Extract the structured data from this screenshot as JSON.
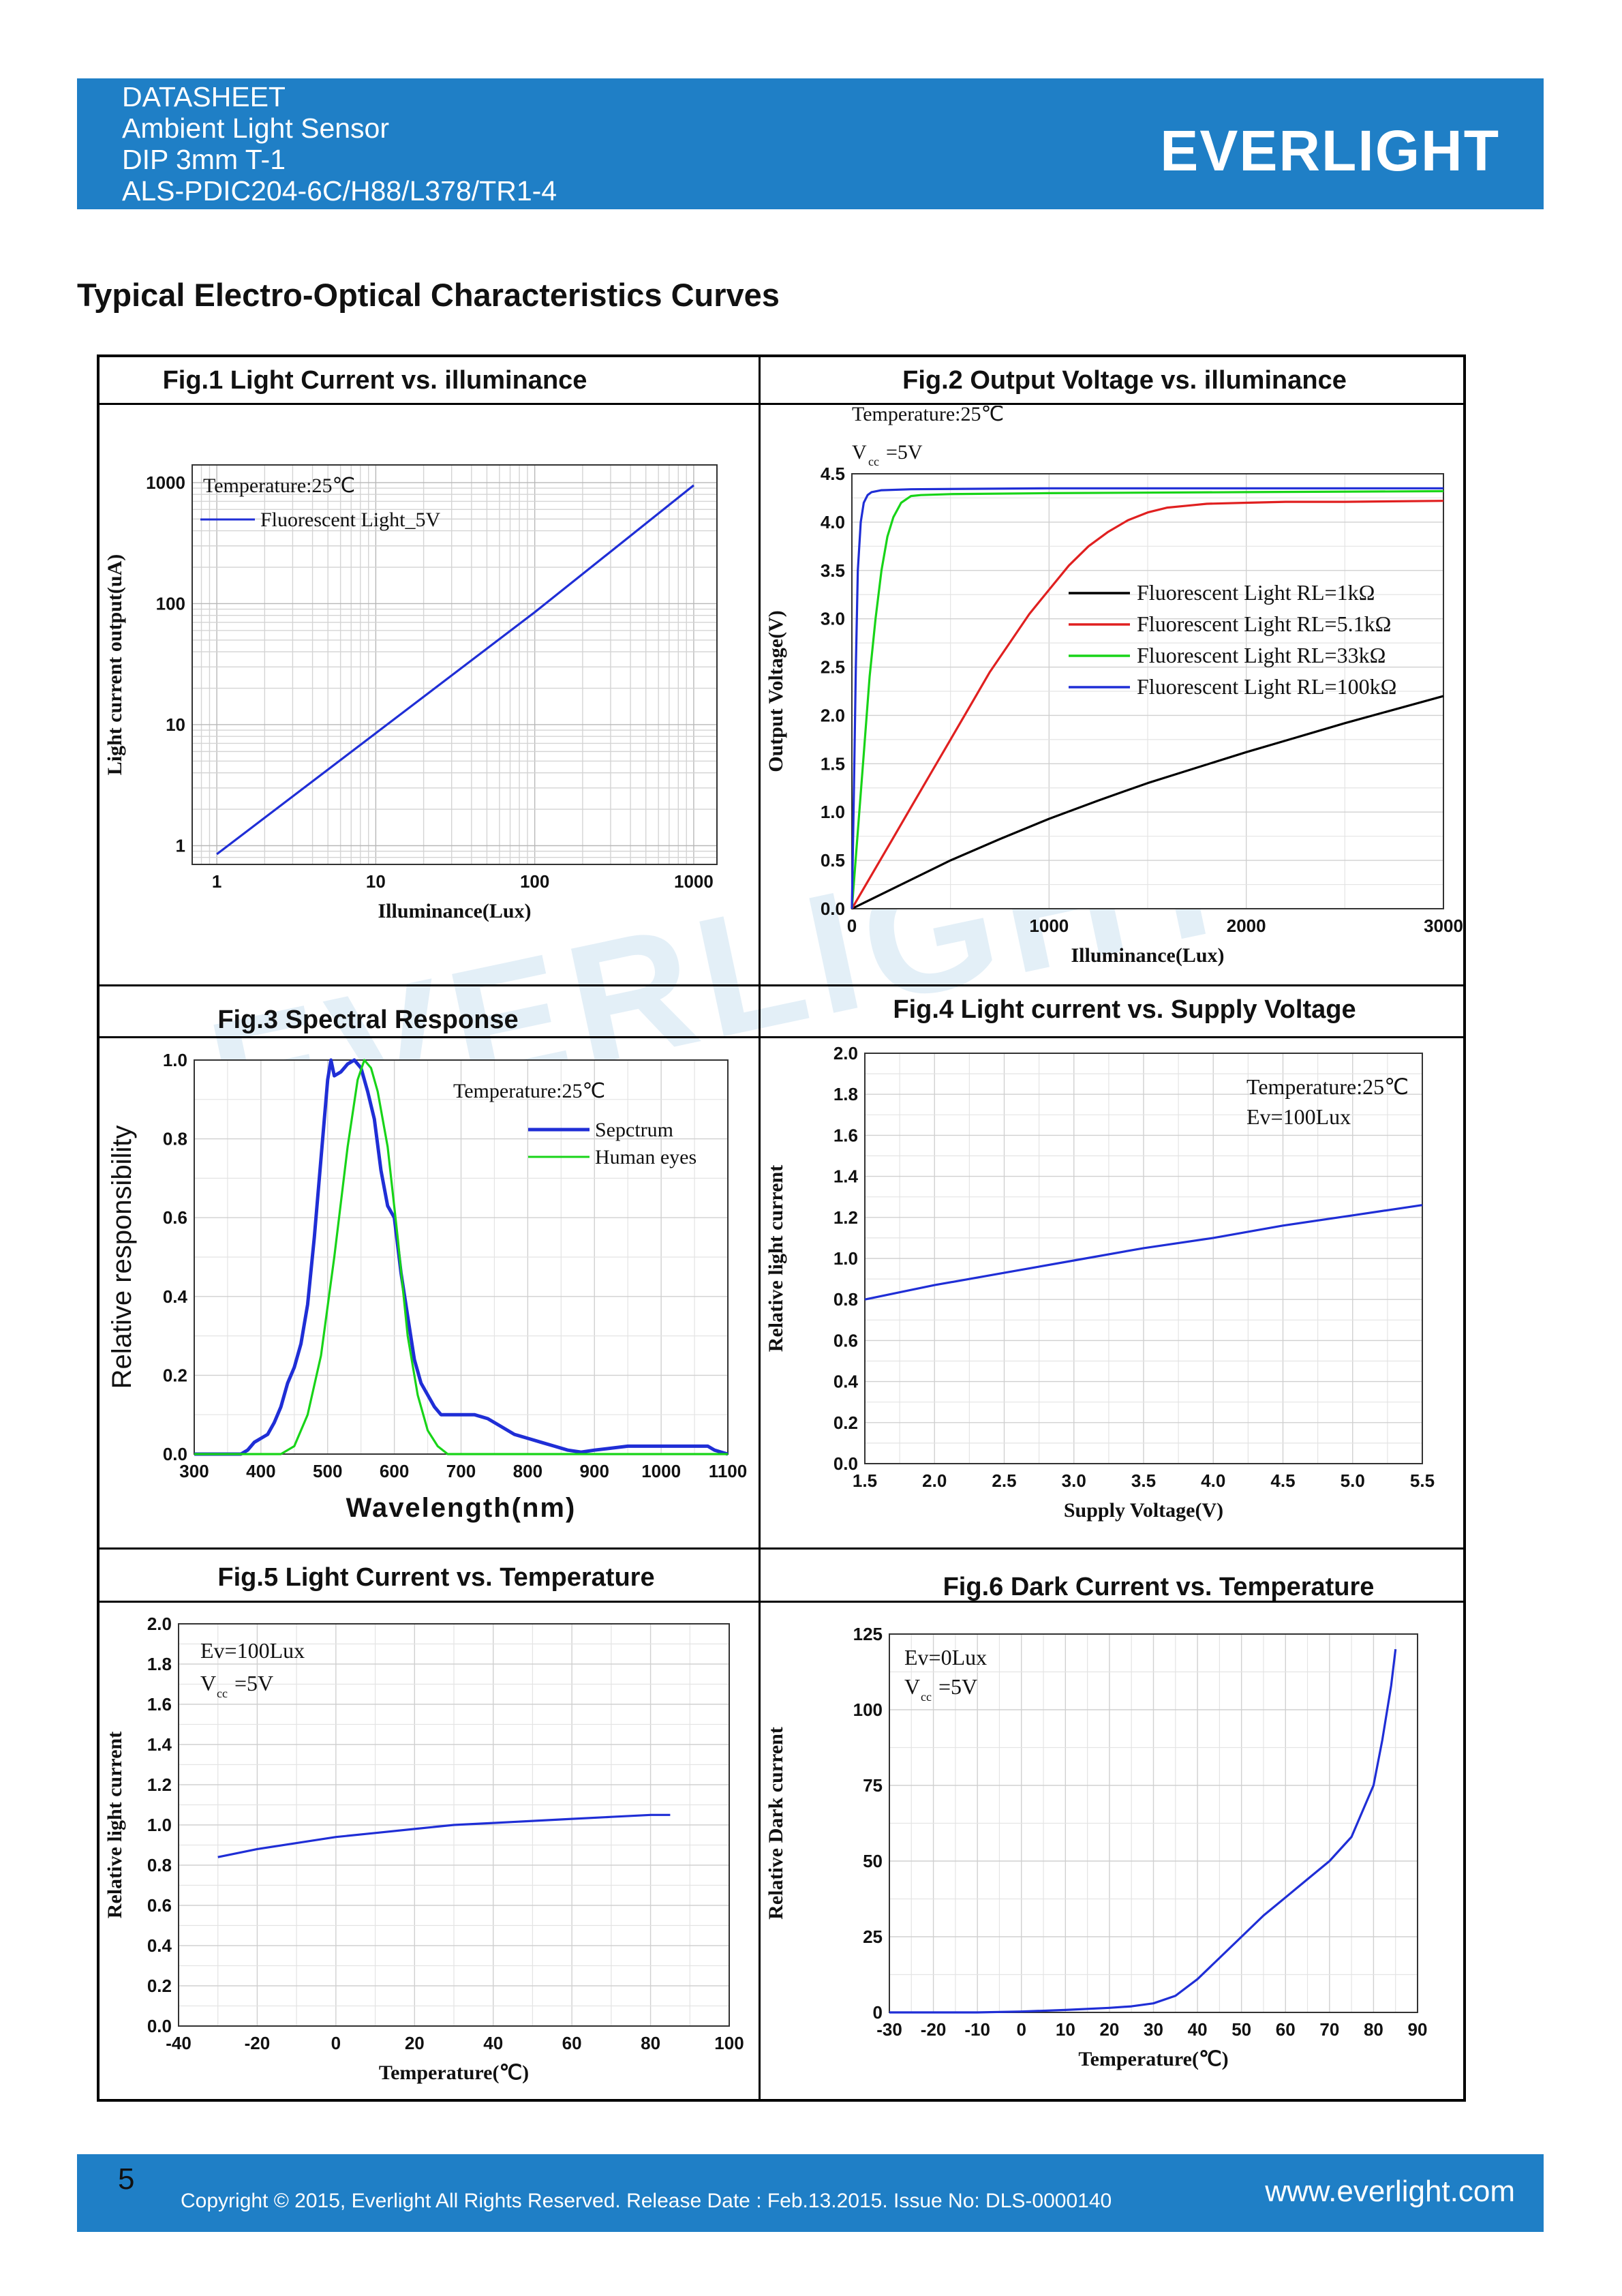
{
  "header": {
    "lines": [
      "DATASHEET",
      "Ambient Light Sensor",
      "DIP 3mm T-1",
      "ALS-PDIC204-6C/H88/L378/TR1-4"
    ],
    "brand": "EVERLIGHT"
  },
  "section_title": "Typical Electro-Optical Characteristics Curves",
  "watermark": "EVERLIGHT",
  "figures": [
    {
      "title": "Fig.1    Light Current vs. illuminance"
    },
    {
      "title": "Fig.2    Output Voltage vs. illuminance"
    },
    {
      "title": "Fig.3    Spectral Response"
    },
    {
      "title": "Fig.4 Light current vs. Supply Voltage"
    },
    {
      "title": "Fig.5    Light Current vs. Temperature"
    },
    {
      "title": "Fig.6    Dark Current vs. Temperature"
    }
  ],
  "chart_data": [
    {
      "type": "line",
      "title": "Fig.1 Light Current vs. illuminance",
      "xlabel": "Illuminance(Lux)",
      "ylabel": "Light current output(uA)",
      "xscale": "log",
      "yscale": "log",
      "xlim": [
        0.7,
        1400
      ],
      "ylim": [
        0.7,
        1400
      ],
      "xticks": [
        "1",
        "10",
        "100",
        "1000"
      ],
      "yticks": [
        "1",
        "10",
        "100",
        "1000"
      ],
      "annotations": [
        "Temperature:25℃"
      ],
      "grid": true,
      "colors": {
        "series": "#1f2ed6"
      },
      "series": [
        {
          "name": "Fluorescent Light_5V",
          "x": [
            1,
            10,
            100,
            1000
          ],
          "y": [
            0.85,
            8.5,
            85,
            950
          ]
        }
      ]
    },
    {
      "type": "line",
      "title": "Fig.2 Output Voltage vs. illuminance",
      "xlabel": "Illuminance(Lux)",
      "ylabel": "Output Voltage(V)",
      "xlim": [
        0,
        3000
      ],
      "ylim": [
        0,
        4.5
      ],
      "xticks": [
        "0",
        "1000",
        "2000",
        "3000"
      ],
      "yticks": [
        "0.0",
        "0.5",
        "1.0",
        "1.5",
        "2.0",
        "2.5",
        "3.0",
        "3.5",
        "4.0",
        "4.5"
      ],
      "annotations": [
        "Temperature:25℃",
        "V",
        "cc",
        "=5V"
      ],
      "legend": "right",
      "series": [
        {
          "name": "Fluorescent Light RL=1kΩ",
          "color": "#000000",
          "x": [
            0,
            250,
            500,
            750,
            1000,
            1250,
            1500,
            1750,
            2000,
            2250,
            2500,
            2750,
            3000
          ],
          "y": [
            0,
            0.25,
            0.5,
            0.72,
            0.93,
            1.12,
            1.3,
            1.46,
            1.62,
            1.77,
            1.92,
            2.06,
            2.2
          ]
        },
        {
          "name": "Fluorescent Light RL=5.1kΩ",
          "color": "#e02020",
          "x": [
            0,
            100,
            200,
            300,
            400,
            500,
            600,
            700,
            800,
            900,
            1000,
            1100,
            1200,
            1300,
            1400,
            1500,
            1600,
            1700,
            1800,
            2000,
            2200,
            2500,
            3000
          ],
          "y": [
            0,
            0.35,
            0.7,
            1.05,
            1.4,
            1.75,
            2.1,
            2.45,
            2.75,
            3.05,
            3.3,
            3.55,
            3.75,
            3.9,
            4.02,
            4.1,
            4.15,
            4.17,
            4.19,
            4.2,
            4.21,
            4.21,
            4.22
          ]
        },
        {
          "name": "Fluorescent Light RL=33kΩ",
          "color": "#18d418",
          "x": [
            0,
            30,
            60,
            90,
            120,
            150,
            180,
            210,
            250,
            300,
            350,
            500,
            1000,
            2000,
            3000
          ],
          "y": [
            0,
            0.8,
            1.6,
            2.4,
            3.0,
            3.5,
            3.85,
            4.05,
            4.2,
            4.27,
            4.28,
            4.29,
            4.3,
            4.31,
            4.32
          ]
        },
        {
          "name": "Fluorescent Light RL=100kΩ",
          "color": "#1f2ed6",
          "x": [
            0,
            10,
            20,
            30,
            45,
            60,
            80,
            100,
            150,
            300,
            1000,
            2000,
            3000
          ],
          "y": [
            0,
            1.2,
            2.5,
            3.5,
            4.0,
            4.2,
            4.28,
            4.31,
            4.33,
            4.34,
            4.35,
            4.35,
            4.35
          ]
        }
      ]
    },
    {
      "type": "line",
      "title": "Fig.3 Spectral Response",
      "xlabel": "Wavelength(nm)",
      "ylabel": "Relative responsibility",
      "xlim": [
        300,
        1100
      ],
      "ylim": [
        0,
        1.0
      ],
      "xticks": [
        "300",
        "400",
        "500",
        "600",
        "700",
        "800",
        "900",
        "1000",
        "1100"
      ],
      "yticks": [
        "0.0",
        "0.2",
        "0.4",
        "0.6",
        "0.8",
        "1.0"
      ],
      "annotations": [
        "Temperature:25℃"
      ],
      "legend": "top-right",
      "series": [
        {
          "name": "Sepctrum",
          "color": "#1f2ed6",
          "x": [
            300,
            370,
            380,
            390,
            400,
            410,
            420,
            430,
            440,
            450,
            460,
            470,
            480,
            490,
            500,
            505,
            510,
            520,
            530,
            540,
            550,
            560,
            570,
            580,
            590,
            600,
            610,
            620,
            630,
            640,
            650,
            660,
            670,
            680,
            700,
            720,
            740,
            760,
            780,
            800,
            820,
            840,
            860,
            880,
            900,
            950,
            1000,
            1050,
            1070,
            1080,
            1090,
            1100
          ],
          "y": [
            0,
            0,
            0.01,
            0.03,
            0.04,
            0.05,
            0.08,
            0.12,
            0.18,
            0.22,
            0.28,
            0.38,
            0.55,
            0.75,
            0.95,
            1.0,
            0.96,
            0.97,
            0.99,
            1.0,
            0.98,
            0.92,
            0.85,
            0.72,
            0.63,
            0.6,
            0.46,
            0.35,
            0.24,
            0.18,
            0.15,
            0.12,
            0.1,
            0.1,
            0.1,
            0.1,
            0.09,
            0.07,
            0.05,
            0.04,
            0.03,
            0.02,
            0.01,
            0.005,
            0.01,
            0.02,
            0.02,
            0.02,
            0.02,
            0.01,
            0.005,
            0
          ]
        },
        {
          "name": "Human eyes",
          "color": "#18d418",
          "x": [
            300,
            430,
            450,
            470,
            490,
            510,
            530,
            545,
            555,
            565,
            575,
            590,
            605,
            620,
            635,
            650,
            665,
            680,
            1100
          ],
          "y": [
            0,
            0,
            0.02,
            0.1,
            0.25,
            0.5,
            0.78,
            0.95,
            1.0,
            0.98,
            0.92,
            0.78,
            0.55,
            0.3,
            0.15,
            0.06,
            0.02,
            0,
            0
          ]
        }
      ]
    },
    {
      "type": "line",
      "title": "Fig.4 Light current vs. Supply Voltage",
      "xlabel": "Supply Voltage(V)",
      "ylabel": "Relative light current",
      "xlim": [
        1.5,
        5.5
      ],
      "ylim": [
        0,
        2.0
      ],
      "xticks": [
        "1.5",
        "2.0",
        "2.5",
        "3.0",
        "3.5",
        "4.0",
        "4.5",
        "5.0",
        "5.5"
      ],
      "yticks": [
        "0.0",
        "0.2",
        "0.4",
        "0.6",
        "0.8",
        "1.0",
        "1.2",
        "1.4",
        "1.6",
        "1.8",
        "2.0"
      ],
      "annotations": [
        "Temperature:25℃",
        "Ev=100Lux"
      ],
      "colors": {
        "series": "#1f2ed6"
      },
      "series": [
        {
          "x": [
            1.5,
            2.0,
            2.5,
            3.0,
            3.5,
            4.0,
            4.5,
            5.0,
            5.5
          ],
          "y": [
            0.8,
            0.87,
            0.93,
            0.99,
            1.05,
            1.1,
            1.16,
            1.21,
            1.26
          ]
        }
      ]
    },
    {
      "type": "line",
      "title": "Fig.5 Light Current vs. Temperature",
      "xlabel": "Temperature(℃)",
      "ylabel": "Relative light current",
      "xlim": [
        -40,
        100
      ],
      "ylim": [
        0,
        2.0
      ],
      "xticks": [
        "-40",
        "-20",
        "0",
        "20",
        "40",
        "60",
        "80",
        "100"
      ],
      "yticks": [
        "0.0",
        "0.2",
        "0.4",
        "0.6",
        "0.8",
        "1.0",
        "1.2",
        "1.4",
        "1.6",
        "1.8",
        "2.0"
      ],
      "annotations": [
        "Ev=100Lux",
        "V",
        "cc",
        "=5V"
      ],
      "colors": {
        "series": "#1f2ed6"
      },
      "series": [
        {
          "x": [
            -30,
            -20,
            -10,
            0,
            10,
            20,
            30,
            40,
            50,
            60,
            70,
            80,
            85
          ],
          "y": [
            0.84,
            0.88,
            0.91,
            0.94,
            0.96,
            0.98,
            1.0,
            1.01,
            1.02,
            1.03,
            1.04,
            1.05,
            1.05
          ]
        }
      ]
    },
    {
      "type": "line",
      "title": "Fig.6 Dark Current vs. Temperature",
      "xlabel": "Temperature(℃)",
      "ylabel": "Relative Dark current",
      "xlim": [
        -30,
        90
      ],
      "ylim": [
        0,
        125
      ],
      "xticks": [
        "-30",
        "-20",
        "-10",
        "0",
        "10",
        "20",
        "30",
        "40",
        "50",
        "60",
        "70",
        "80",
        "90"
      ],
      "yticks": [
        "0",
        "25",
        "50",
        "75",
        "100",
        "125"
      ],
      "annotations": [
        "Ev=0Lux",
        "V",
        "cc",
        "=5V"
      ],
      "colors": {
        "series": "#1f2ed6"
      },
      "series": [
        {
          "x": [
            -30,
            -10,
            0,
            10,
            20,
            25,
            30,
            35,
            40,
            45,
            50,
            55,
            60,
            65,
            70,
            75,
            80,
            82,
            84,
            85
          ],
          "y": [
            0,
            0,
            0.3,
            0.8,
            1.5,
            2,
            3,
            5.5,
            11,
            18,
            25,
            32,
            38,
            44,
            50,
            58,
            75,
            90,
            108,
            120
          ]
        }
      ]
    }
  ],
  "footer": {
    "page": "5",
    "copyright": "Copyright © 2015, Everlight All Rights Reserved. Release Date : Feb.13.2015. Issue No: DLS-0000140",
    "website": "www.everlight.com"
  }
}
